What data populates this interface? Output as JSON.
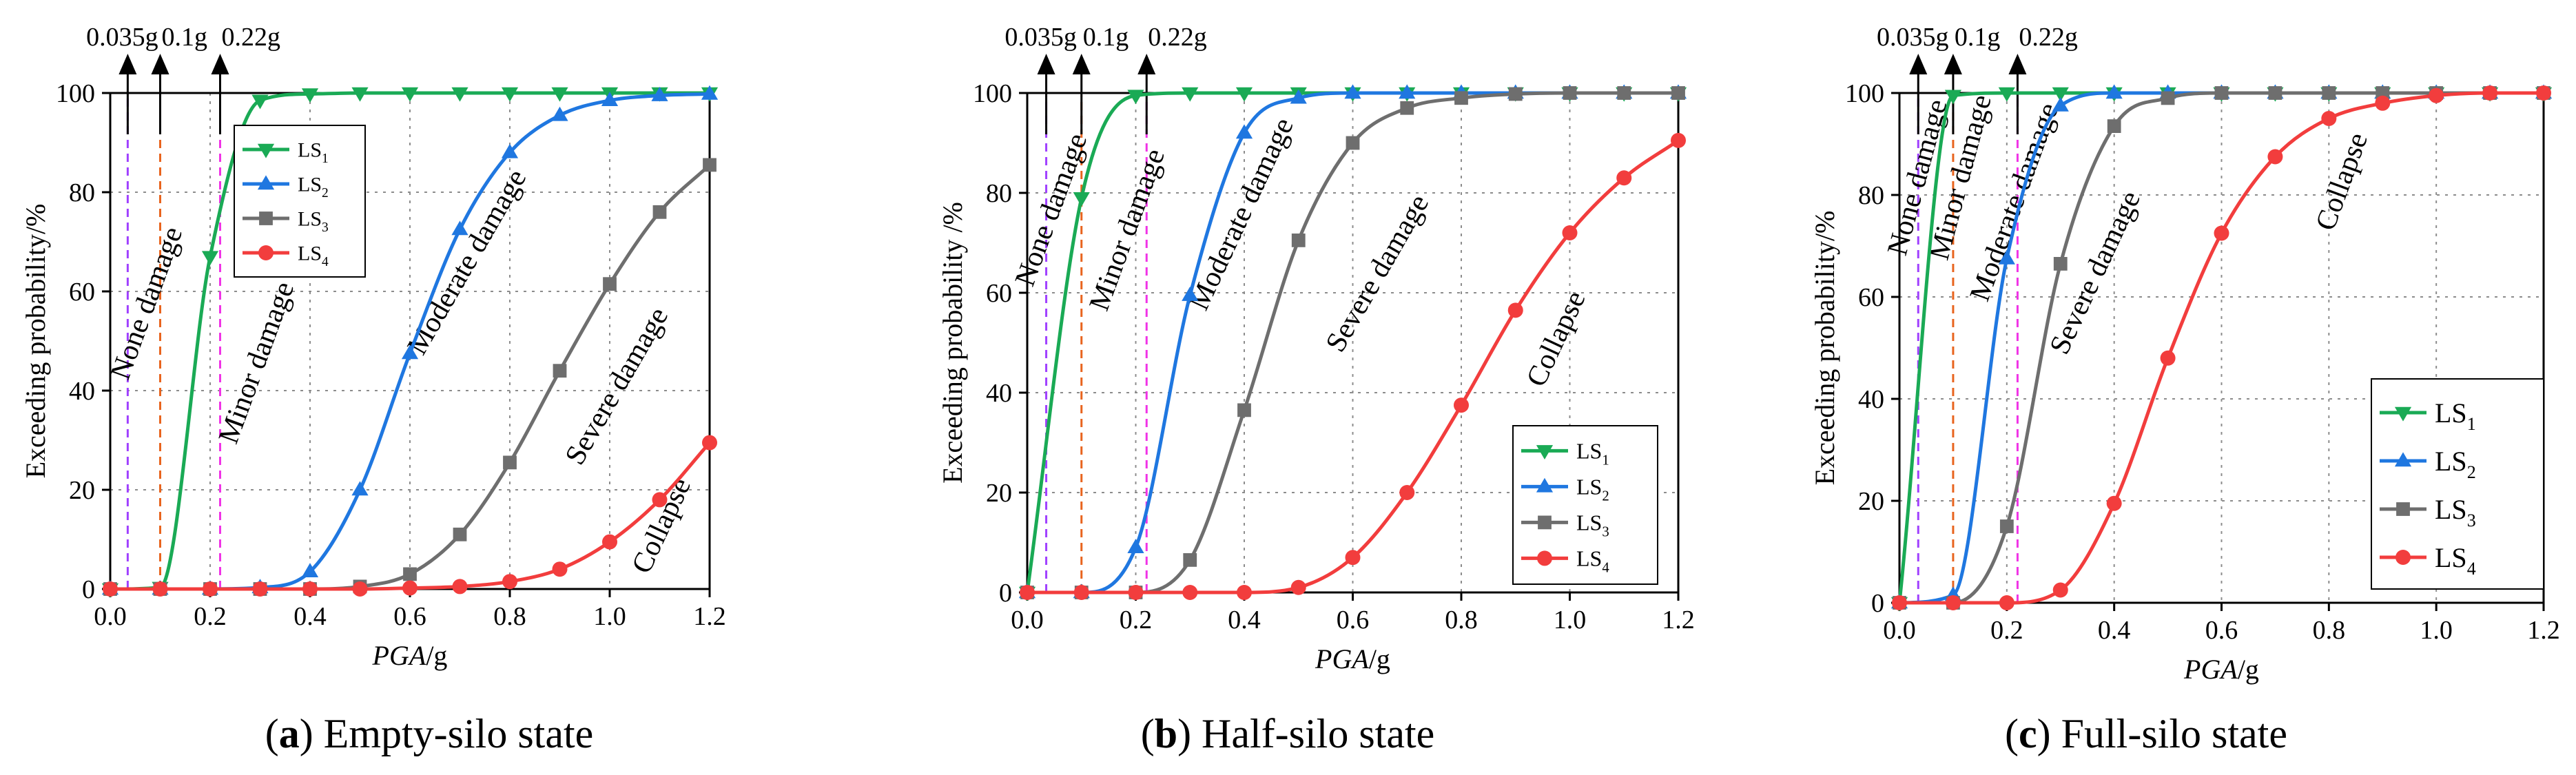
{
  "figure": {
    "captions": [
      {
        "letter": "a",
        "text": "Empty-silo state"
      },
      {
        "letter": "b",
        "text": "Half-silo state"
      },
      {
        "letter": "c",
        "text": "Full-silo state"
      }
    ]
  },
  "colors": {
    "LS1": "#1aaa55",
    "LS2": "#1f77e0",
    "LS3": "#6e6e6e",
    "LS4": "#f23d3d",
    "line_0035g": "#a040ff",
    "line_01g": "#e8641e",
    "line_022g": "#f033e6",
    "grid": "#8c8c8c"
  },
  "chart_data": [
    {
      "type": "line",
      "panel": "a",
      "xlabel": "PGA",
      "xlabel_unit": "/g",
      "ylabel": "Exceeding probability/%",
      "xlim": [
        0,
        1.2
      ],
      "ylim": [
        0,
        100
      ],
      "xticks": [
        "0.0",
        "0.2",
        "0.4",
        "0.6",
        "0.8",
        "1.0",
        "1.2"
      ],
      "yticks": [
        "0",
        "20",
        "40",
        "60",
        "80",
        "100"
      ],
      "legend_position": "upper-left",
      "legend": [
        "LS1",
        "LS2",
        "LS3",
        "LS4"
      ],
      "vlines": [
        {
          "label": "0.035g",
          "x": 0.035
        },
        {
          "label": "0.1g",
          "x": 0.1
        },
        {
          "label": "0.22g",
          "x": 0.22
        }
      ],
      "annotations": [
        {
          "text": "None damage",
          "x": 0.09,
          "y": 57,
          "angle": -70
        },
        {
          "text": "Minor damage",
          "x": 0.31,
          "y": 45,
          "angle": -70
        },
        {
          "text": "Moderate damage",
          "x": 0.73,
          "y": 65,
          "angle": -60
        },
        {
          "text": "Severe damage",
          "x": 1.03,
          "y": 40,
          "angle": -60
        },
        {
          "text": "Collapse",
          "x": 1.12,
          "y": 12,
          "angle": -65
        }
      ],
      "series": [
        {
          "name": "LS1",
          "marker": "triangle-down",
          "x": [
            0,
            0.1,
            0.2,
            0.3,
            0.4,
            0.5,
            0.6,
            0.7,
            0.8,
            0.9,
            1.0,
            1.1,
            1.2
          ],
          "values": [
            0,
            0.3,
            67,
            98.5,
            99.8,
            100,
            100,
            100,
            100,
            100,
            100,
            100,
            100
          ]
        },
        {
          "name": "LS2",
          "marker": "triangle-up",
          "x": [
            0,
            0.1,
            0.2,
            0.3,
            0.4,
            0.5,
            0.6,
            0.7,
            0.8,
            0.9,
            1.0,
            1.1,
            1.2
          ],
          "values": [
            0,
            0,
            0,
            0.3,
            3.5,
            20,
            47.5,
            72.5,
            88,
            95.5,
            98.5,
            99.5,
            99.8
          ]
        },
        {
          "name": "LS3",
          "marker": "square",
          "x": [
            0,
            0.1,
            0.2,
            0.3,
            0.4,
            0.5,
            0.6,
            0.7,
            0.8,
            0.9,
            1.0,
            1.1,
            1.2
          ],
          "values": [
            0,
            0,
            0,
            0,
            0,
            0.5,
            3,
            11,
            25.5,
            44,
            61.5,
            76,
            85.5
          ]
        },
        {
          "name": "LS4",
          "marker": "circle",
          "x": [
            0,
            0.1,
            0.2,
            0.3,
            0.4,
            0.5,
            0.6,
            0.7,
            0.8,
            0.9,
            1.0,
            1.1,
            1.2
          ],
          "values": [
            0,
            0,
            0,
            0,
            0,
            0,
            0.2,
            0.5,
            1.5,
            4,
            9.5,
            18,
            29.5
          ]
        }
      ]
    },
    {
      "type": "line",
      "panel": "b",
      "xlabel": "PGA",
      "xlabel_unit": "/g",
      "ylabel": "Exceeding probability /%",
      "xlim": [
        0,
        1.2
      ],
      "ylim": [
        0,
        100
      ],
      "xticks": [
        "0.0",
        "0.2",
        "0.4",
        "0.6",
        "0.8",
        "1.0",
        "1.2"
      ],
      "yticks": [
        "0",
        "20",
        "40",
        "60",
        "80",
        "100"
      ],
      "legend_position": "lower-right",
      "legend": [
        "LS1",
        "LS2",
        "LS3",
        "LS4"
      ],
      "vlines": [
        {
          "label": "0.035g",
          "x": 0.035
        },
        {
          "label": "0.1g",
          "x": 0.1
        },
        {
          "label": "0.22g",
          "x": 0.22
        }
      ],
      "annotations": [
        {
          "text": "None damage",
          "x": 0.06,
          "y": 76,
          "angle": -70
        },
        {
          "text": "Minor damage",
          "x": 0.2,
          "y": 72,
          "angle": -70
        },
        {
          "text": "Moderate damage",
          "x": 0.41,
          "y": 75,
          "angle": -65
        },
        {
          "text": "Severe damage",
          "x": 0.66,
          "y": 63,
          "angle": -60
        },
        {
          "text": "Collapse",
          "x": 0.99,
          "y": 50,
          "angle": -65
        }
      ],
      "series": [
        {
          "name": "LS1",
          "marker": "triangle-down",
          "x": [
            0,
            0.1,
            0.2,
            0.3,
            0.4,
            0.5,
            0.6,
            0.7,
            0.8,
            0.9,
            1.0,
            1.1,
            1.2
          ],
          "values": [
            0,
            79,
            99.5,
            100,
            100,
            100,
            100,
            100,
            100,
            100,
            100,
            100,
            100
          ]
        },
        {
          "name": "LS2",
          "marker": "triangle-up",
          "x": [
            0,
            0.1,
            0.2,
            0.3,
            0.4,
            0.5,
            0.6,
            0.7,
            0.8,
            0.9,
            1.0,
            1.1,
            1.2
          ],
          "values": [
            0,
            0,
            9,
            59.5,
            92,
            99,
            100,
            100,
            100,
            100,
            100,
            100,
            100
          ]
        },
        {
          "name": "LS3",
          "marker": "square",
          "x": [
            0,
            0.1,
            0.2,
            0.3,
            0.4,
            0.5,
            0.6,
            0.7,
            0.8,
            0.9,
            1.0,
            1.1,
            1.2
          ],
          "values": [
            0,
            0,
            0,
            6.5,
            36.5,
            70.5,
            90,
            97,
            99,
            99.8,
            100,
            100,
            100
          ]
        },
        {
          "name": "LS4",
          "marker": "circle",
          "x": [
            0,
            0.1,
            0.2,
            0.3,
            0.4,
            0.5,
            0.6,
            0.7,
            0.8,
            0.9,
            1.0,
            1.1,
            1.2
          ],
          "values": [
            0,
            0,
            0,
            0,
            0,
            1,
            7,
            20,
            37.5,
            56.5,
            72,
            83,
            90.5
          ]
        }
      ]
    },
    {
      "type": "line",
      "panel": "c",
      "xlabel": "PGA",
      "xlabel_unit": "/g",
      "ylabel": "Exceeding probability/%",
      "xlim": [
        0,
        1.2
      ],
      "ylim": [
        0,
        100
      ],
      "xticks": [
        "0.0",
        "0.2",
        "0.4",
        "0.6",
        "0.8",
        "1.0",
        "1.2"
      ],
      "yticks": [
        "0",
        "20",
        "40",
        "60",
        "80",
        "100"
      ],
      "legend_position": "lower-right",
      "legend": [
        "LS1",
        "LS2",
        "LS3",
        "LS4"
      ],
      "vlines": [
        {
          "label": "0.035g",
          "x": 0.035
        },
        {
          "label": "0.1g",
          "x": 0.1
        },
        {
          "label": "0.22g",
          "x": 0.22
        }
      ],
      "annotations": [
        {
          "text": "None damage",
          "x": 0.05,
          "y": 83,
          "angle": -75
        },
        {
          "text": "Minor damage",
          "x": 0.13,
          "y": 83,
          "angle": -75
        },
        {
          "text": "Moderate damage",
          "x": 0.23,
          "y": 78,
          "angle": -70
        },
        {
          "text": "Severe damage",
          "x": 0.38,
          "y": 64,
          "angle": -65
        },
        {
          "text": "Collapse",
          "x": 0.84,
          "y": 82,
          "angle": -70
        }
      ],
      "series": [
        {
          "name": "LS1",
          "marker": "triangle-down",
          "x": [
            0,
            0.1,
            0.2,
            0.3,
            0.4,
            0.5,
            0.6,
            0.7,
            0.8,
            0.9,
            1.0,
            1.1,
            1.2
          ],
          "values": [
            0,
            99.5,
            100,
            100,
            100,
            100,
            100,
            100,
            100,
            100,
            100,
            100,
            100
          ]
        },
        {
          "name": "LS2",
          "marker": "triangle-up",
          "x": [
            0,
            0.1,
            0.2,
            0.3,
            0.4,
            0.5,
            0.6,
            0.7,
            0.8,
            0.9,
            1.0,
            1.1,
            1.2
          ],
          "values": [
            0,
            1.5,
            67.5,
            97.5,
            100,
            100,
            100,
            100,
            100,
            100,
            100,
            100,
            100
          ]
        },
        {
          "name": "LS3",
          "marker": "square",
          "x": [
            0,
            0.1,
            0.2,
            0.3,
            0.4,
            0.5,
            0.6,
            0.7,
            0.8,
            0.9,
            1.0,
            1.1,
            1.2
          ],
          "values": [
            0,
            0,
            15,
            66.5,
            93.5,
            99,
            100,
            100,
            100,
            100,
            100,
            100,
            100
          ]
        },
        {
          "name": "LS4",
          "marker": "circle",
          "x": [
            0,
            0.1,
            0.2,
            0.3,
            0.4,
            0.5,
            0.6,
            0.7,
            0.8,
            0.9,
            1.0,
            1.1,
            1.2
          ],
          "values": [
            0,
            0,
            0,
            2.5,
            19.5,
            48,
            72.5,
            87.5,
            95,
            98,
            99.5,
            100,
            100
          ]
        }
      ]
    }
  ]
}
